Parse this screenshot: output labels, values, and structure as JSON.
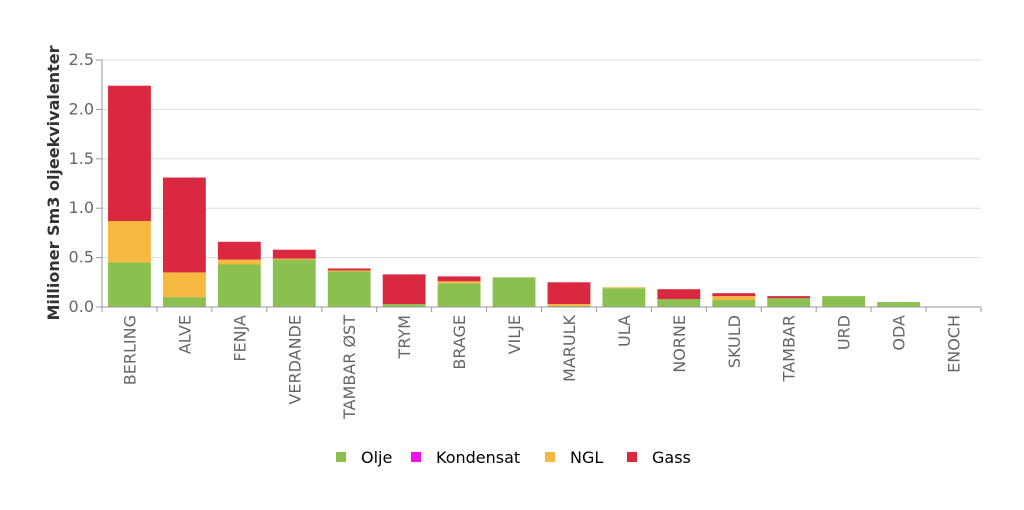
{
  "chart_data": {
    "type": "bar",
    "stacked": true,
    "title": "",
    "xlabel": "",
    "ylabel": "Millioner Sm3 oljeekvivalenter",
    "ylim": [
      0,
      2.5
    ],
    "yticks": [
      "0.0",
      "0.5",
      "1.0",
      "1.5",
      "2.0",
      "2.5"
    ],
    "grid": true,
    "legend_position": "bottom",
    "categories": [
      "BERLING",
      "ALVE",
      "FENJA",
      "VERDANDE",
      "TAMBAR ØST",
      "TRYM",
      "BRAGE",
      "VILJE",
      "MARULK",
      "ULA",
      "NORNE",
      "SKULD",
      "TAMBAR",
      "URD",
      "ODA",
      "ENOCH"
    ],
    "series": [
      {
        "name": "Olje",
        "color": "#8bbf4f",
        "values": [
          0.45,
          0.1,
          0.43,
          0.48,
          0.36,
          0.03,
          0.24,
          0.3,
          0.01,
          0.19,
          0.08,
          0.07,
          0.09,
          0.11,
          0.05,
          0.0
        ]
      },
      {
        "name": "Kondensat",
        "color": "#ee11ee",
        "values": [
          0,
          0,
          0,
          0,
          0,
          0,
          0,
          0,
          0,
          0,
          0,
          0,
          0,
          0,
          0,
          0
        ]
      },
      {
        "name": "NGL",
        "color": "#f5b942",
        "values": [
          0.42,
          0.25,
          0.05,
          0.01,
          0.01,
          0.0,
          0.02,
          0.0,
          0.02,
          0.01,
          0.0,
          0.04,
          0.0,
          0.0,
          0.0,
          0.0
        ]
      },
      {
        "name": "Gass",
        "color": "#da2841",
        "values": [
          1.37,
          0.96,
          0.18,
          0.09,
          0.02,
          0.3,
          0.05,
          0.0,
          0.22,
          0.0,
          0.1,
          0.03,
          0.02,
          0.0,
          0.0,
          0.0
        ]
      }
    ]
  }
}
